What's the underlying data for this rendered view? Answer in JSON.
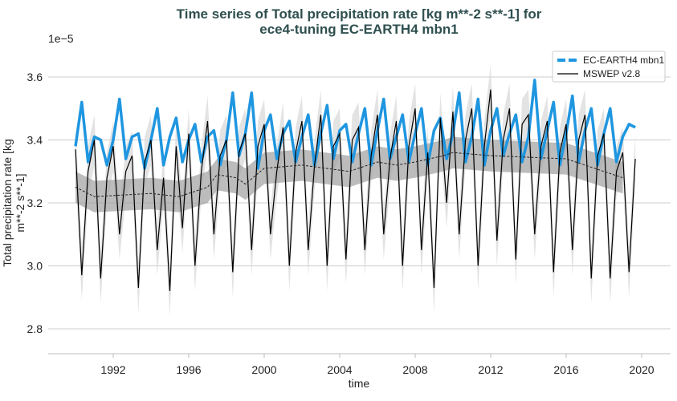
{
  "chart_data": {
    "type": "line",
    "title": [
      "Time series of Total precipitation rate [kg m**-2 s**-1] for",
      "ece4-tuning EC-EARTH4 mbn1"
    ],
    "xlabel": "time",
    "ylabel": [
      "Total precipitation rate [kg",
      "m**-2 s**-1]"
    ],
    "y_scale_label": "1e−5",
    "xlim": [
      1988.5,
      2021.5
    ],
    "ylim": [
      2.77,
      3.65
    ],
    "x_ticks": [
      1992,
      1996,
      2000,
      2004,
      2008,
      2012,
      2016,
      2020
    ],
    "y_ticks": [
      "2.8",
      "3.0",
      "3.2",
      "3.4",
      "3.6"
    ],
    "y_tick_values": [
      2.8,
      3.0,
      3.2,
      3.4,
      3.6
    ],
    "grid": "horizontal",
    "legend": "top-right",
    "colors": {
      "model": "#1f96e0",
      "obs": "#000000",
      "band_dark": "#a0a0a0",
      "band_light": "#dcdcdc",
      "title": "#2f4f4f"
    },
    "series": [
      {
        "name": "EC-EARTH4 mbn1",
        "style": "dashed-thick",
        "x_start": 1990.0,
        "x_step": 0.3333,
        "values": [
          3.38,
          3.52,
          3.33,
          3.41,
          3.4,
          3.32,
          3.4,
          3.53,
          3.34,
          3.41,
          3.42,
          3.31,
          3.4,
          3.5,
          3.32,
          3.41,
          3.47,
          3.33,
          3.4,
          3.45,
          3.33,
          3.41,
          3.43,
          3.32,
          3.4,
          3.55,
          3.35,
          3.42,
          3.55,
          3.31,
          3.43,
          3.48,
          3.34,
          3.42,
          3.46,
          3.33,
          3.41,
          3.48,
          3.32,
          3.42,
          3.51,
          3.34,
          3.43,
          3.45,
          3.33,
          3.42,
          3.5,
          3.32,
          3.43,
          3.53,
          3.34,
          3.41,
          3.48,
          3.33,
          3.42,
          3.5,
          3.32,
          3.43,
          3.47,
          3.34,
          3.42,
          3.55,
          3.33,
          3.41,
          3.53,
          3.32,
          3.43,
          3.5,
          3.35,
          3.42,
          3.48,
          3.33,
          3.41,
          3.59,
          3.34,
          3.43,
          3.52,
          3.32,
          3.42,
          3.54,
          3.33,
          3.43,
          3.5,
          3.32,
          3.42,
          3.5,
          3.33,
          3.41,
          3.45,
          3.44
        ]
      },
      {
        "name": "MSWEP v2.8",
        "style": "solid",
        "x_start": 1990.0,
        "x_step": 0.3333,
        "values": [
          3.37,
          2.97,
          3.3,
          3.4,
          2.96,
          3.28,
          3.38,
          3.1,
          3.3,
          3.35,
          2.93,
          3.33,
          3.4,
          3.05,
          3.28,
          2.92,
          3.38,
          3.12,
          3.42,
          3.0,
          3.3,
          3.46,
          3.1,
          3.35,
          3.4,
          2.98,
          3.36,
          3.42,
          3.05,
          3.38,
          3.45,
          3.1,
          3.3,
          3.44,
          3.0,
          3.36,
          3.46,
          3.05,
          3.32,
          3.48,
          3.0,
          3.38,
          3.42,
          3.02,
          3.4,
          3.44,
          3.05,
          3.35,
          3.48,
          3.1,
          3.34,
          3.46,
          3.0,
          3.38,
          3.5,
          3.05,
          3.36,
          2.93,
          3.47,
          3.2,
          3.49,
          3.1,
          3.4,
          3.5,
          3.0,
          3.38,
          3.56,
          3.08,
          3.4,
          3.5,
          3.02,
          3.45,
          3.48,
          3.1,
          3.38,
          3.46,
          2.98,
          3.36,
          3.45,
          3.05,
          3.4,
          3.48,
          2.96,
          3.35,
          3.42,
          2.96,
          3.3,
          3.36,
          2.98,
          3.34
        ],
        "spread": 0.08
      },
      {
        "style": "dashed-thin",
        "x": [
          1990,
          1991,
          1994,
          1995.5,
          1997,
          1997.5,
          1998.5,
          1999,
          2000,
          2002,
          2004.5,
          2006,
          2007,
          2008,
          2009.5,
          2010,
          2012,
          2016,
          2018,
          2019
        ],
        "values": [
          3.25,
          3.22,
          3.23,
          3.22,
          3.25,
          3.29,
          3.28,
          3.26,
          3.31,
          3.32,
          3.3,
          3.33,
          3.32,
          3.33,
          3.35,
          3.36,
          3.35,
          3.34,
          3.3,
          3.28
        ],
        "band": 0.05
      }
    ]
  }
}
